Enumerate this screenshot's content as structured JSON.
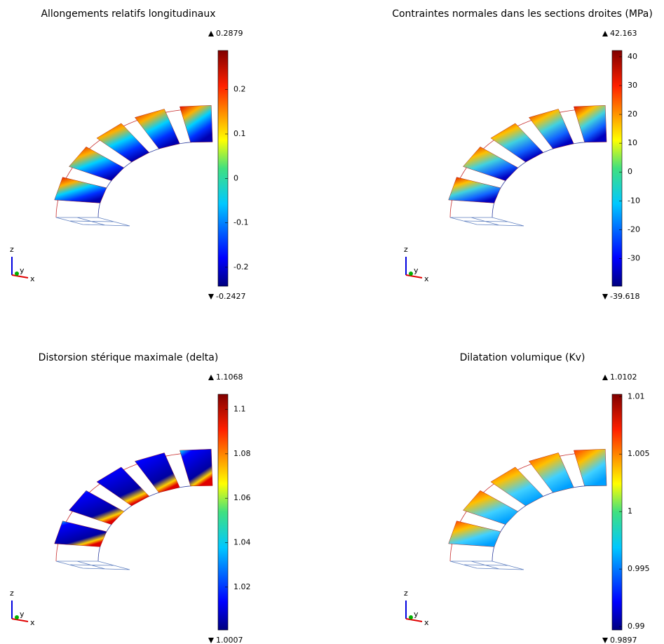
{
  "panels": [
    {
      "title": "Allongements relatifs longitudinaux",
      "max": 0.2879,
      "min": -0.2427,
      "ticks": [
        0.2,
        0.1,
        0,
        -0.1,
        -0.2
      ]
    },
    {
      "title": "Contraintes normales dans les sections droites (MPa)",
      "max": 42.163,
      "min": -39.618,
      "ticks": [
        40,
        30,
        20,
        10,
        0,
        -10,
        -20,
        -30
      ]
    },
    {
      "title": "Distorsion stérique maximale (delta)",
      "max": 1.1068,
      "min": 1.0007,
      "ticks": [
        1.1,
        1.08,
        1.06,
        1.04,
        1.02
      ]
    },
    {
      "title": "Dilatation volumique (Kv)",
      "max": 1.0102,
      "min": 0.9897,
      "ticks": [
        1.01,
        1.005,
        1,
        0.995,
        0.99
      ]
    }
  ],
  "axes": {
    "x": "x",
    "y": "y",
    "z": "z"
  }
}
